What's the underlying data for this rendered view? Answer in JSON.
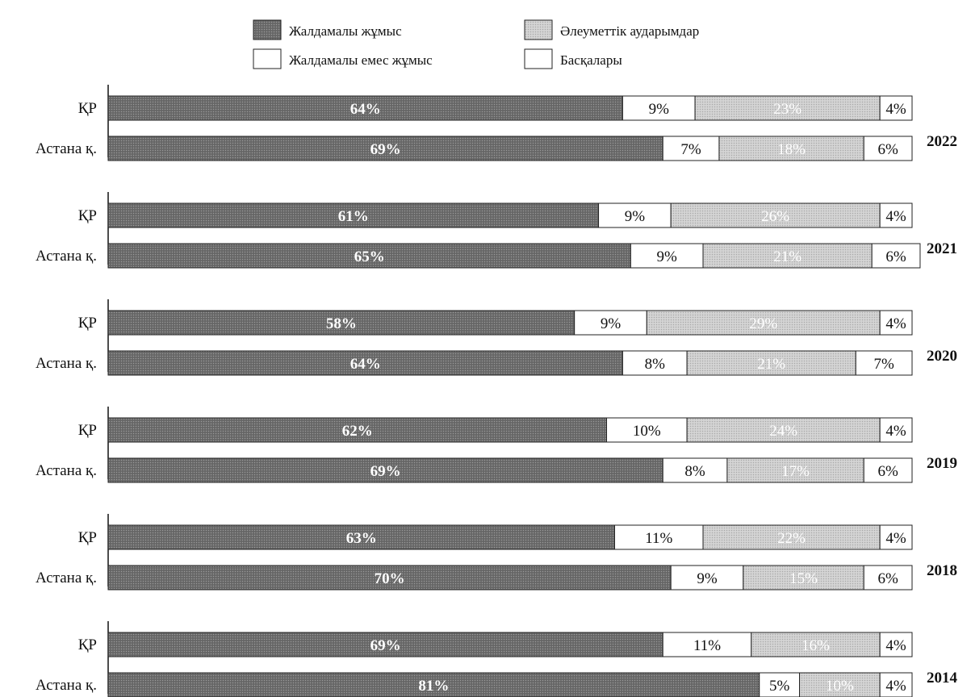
{
  "chart_data": {
    "type": "bar",
    "orientation": "horizontal",
    "stacked": true,
    "normalized": true,
    "legend_position": "top-center",
    "grid": false,
    "xlim": [
      0,
      100
    ],
    "colors": {
      "hired_work": "#6e6e6e",
      "non_hired_work": "#ffffff",
      "social_transfers": "#c9c9c9",
      "others": "#ffffff",
      "outline": "#222222"
    },
    "legend": [
      {
        "key": "hired_work",
        "label": "Жалдамалы жұмыс"
      },
      {
        "key": "social_transfers",
        "label": "Әлеуметтік аударымдар"
      },
      {
        "key": "non_hired_work",
        "label": "Жалдамалы емес жұмыс"
      },
      {
        "key": "others",
        "label": "Басқалары"
      }
    ],
    "series_order": [
      "hired_work",
      "non_hired_work",
      "social_transfers",
      "others"
    ],
    "groups": [
      {
        "year": "2022",
        "bars": [
          {
            "category": "ҚР",
            "values": [
              64,
              9,
              23,
              4
            ]
          },
          {
            "category": "Астана қ.",
            "values": [
              69,
              7,
              18,
              6
            ]
          }
        ]
      },
      {
        "year": "2021",
        "bars": [
          {
            "category": "ҚР",
            "values": [
              61,
              9,
              26,
              4
            ]
          },
          {
            "category": "Астана қ.",
            "values": [
              65,
              9,
              21,
              6
            ]
          }
        ]
      },
      {
        "year": "2020",
        "bars": [
          {
            "category": "ҚР",
            "values": [
              58,
              9,
              29,
              4
            ]
          },
          {
            "category": "Астана қ.",
            "values": [
              64,
              8,
              21,
              7
            ]
          }
        ]
      },
      {
        "year": "2019",
        "bars": [
          {
            "category": "ҚР",
            "values": [
              62,
              10,
              24,
              4
            ]
          },
          {
            "category": "Астана қ.",
            "values": [
              69,
              8,
              17,
              6
            ]
          }
        ]
      },
      {
        "year": "2018",
        "bars": [
          {
            "category": "ҚР",
            "values": [
              63,
              11,
              22,
              4
            ]
          },
          {
            "category": "Астана қ.",
            "values": [
              70,
              9,
              15,
              6
            ]
          }
        ]
      },
      {
        "year": "2014",
        "bars": [
          {
            "category": "ҚР",
            "values": [
              69,
              11,
              16,
              4
            ]
          },
          {
            "category": "Астана қ.",
            "values": [
              81,
              5,
              10,
              4
            ]
          }
        ]
      }
    ]
  }
}
